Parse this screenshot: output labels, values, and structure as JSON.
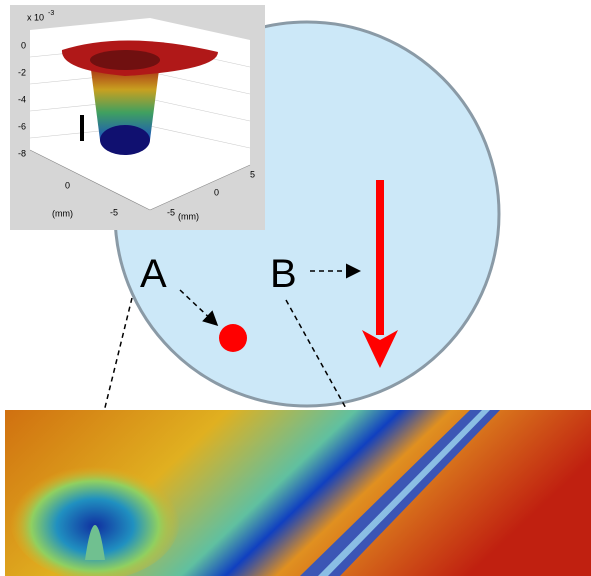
{
  "labels": {
    "a": "A",
    "b": "B"
  },
  "inset": {
    "z_axis": {
      "scale": "x 10",
      "exponent": "-3",
      "ticks": [
        "0",
        "-2",
        "-4",
        "-6",
        "-8"
      ]
    },
    "x_axis": {
      "ticks": [
        "0",
        "-5"
      ],
      "unit": "(mm)"
    },
    "y_axis": {
      "ticks": [
        "5",
        "0",
        "-5"
      ],
      "unit": "(mm)"
    }
  }
}
